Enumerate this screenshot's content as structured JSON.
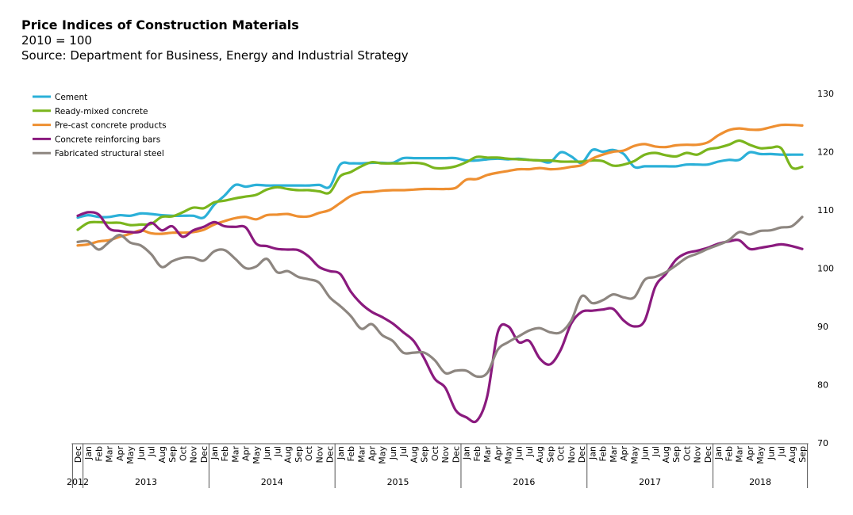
{
  "header": {
    "title": "Price Indices of Construction Materials",
    "subtitle": "2010 = 100",
    "source": "Source: Department for Business, Energy and Industrial Strategy"
  },
  "chart_data": {
    "type": "line",
    "title": "Price Indices of Construction Materials",
    "subtitle": "2010 = 100",
    "source": "Source: Department for Business, Energy and Industrial Strategy",
    "ylim": [
      70,
      130
    ],
    "y_ticks": [
      70,
      80,
      90,
      100,
      110,
      120,
      130
    ],
    "y_axis_side": "right",
    "grid": false,
    "legend_position": "top-left",
    "x": [
      "Dec 2012",
      "Jan 2013",
      "Feb 2013",
      "Mar 2013",
      "Apr 2013",
      "May 2013",
      "Jun 2013",
      "Jul 2013",
      "Aug 2013",
      "Sep 2013",
      "Oct 2013",
      "Nov 2013",
      "Dec 2013",
      "Jan 2014",
      "Feb 2014",
      "Mar 2014",
      "Apr 2014",
      "May 2014",
      "Jun 2014",
      "Jul 2014",
      "Aug 2014",
      "Sep 2014",
      "Oct 2014",
      "Nov 2014",
      "Dec 2014",
      "Jan 2015",
      "Feb 2015",
      "Mar 2015",
      "Apr 2015",
      "May 2015",
      "Jun 2015",
      "Jul 2015",
      "Aug 2015",
      "Sep 2015",
      "Oct 2015",
      "Nov 2015",
      "Dec 2015",
      "Jan 2016",
      "Feb 2016",
      "Mar 2016",
      "Apr 2016",
      "May 2016",
      "Jun 2016",
      "Jul 2016",
      "Aug 2016",
      "Sep 2016",
      "Oct 2016",
      "Nov 2016",
      "Dec 2016",
      "Jan 2017",
      "Feb 2017",
      "Mar 2017",
      "Apr 2017",
      "May 2017",
      "Jun 2017",
      "Jul 2017",
      "Aug 2017",
      "Sep 2017",
      "Oct 2017",
      "Nov 2017",
      "Dec 2017",
      "Jan 2018",
      "Feb 2018",
      "Mar 2018",
      "Apr 2018",
      "May 2018",
      "Jun 2018",
      "Jul 2018",
      "Aug 2018",
      "Sep 2018"
    ],
    "x_month_labels": [
      "Dec",
      "Jan",
      "Feb",
      "Mar",
      "Apr",
      "May",
      "Jun",
      "Jul",
      "Aug",
      "Sep",
      "Oct",
      "Nov",
      "Dec",
      "Jan",
      "Feb",
      "Mar",
      "Apr",
      "May",
      "Jun",
      "Jul",
      "Aug",
      "Sep",
      "Oct",
      "Nov",
      "Dec",
      "Jan",
      "Feb",
      "Mar",
      "Apr",
      "May",
      "Jun",
      "Jul",
      "Aug",
      "Sep",
      "Oct",
      "Nov",
      "Dec",
      "Jan",
      "Feb",
      "Mar",
      "Apr",
      "May",
      "Jun",
      "Jul",
      "Aug",
      "Sep",
      "Oct",
      "Nov",
      "Dec",
      "Jan",
      "Feb",
      "Mar",
      "Apr",
      "May",
      "Jun",
      "Jul",
      "Aug",
      "Sep",
      "Oct",
      "Nov",
      "Dec",
      "Jan",
      "Feb",
      "Mar",
      "Apr",
      "May",
      "Jun",
      "Jul",
      "Aug",
      "Sep"
    ],
    "x_year_groups": [
      {
        "label": "2012",
        "start": 0,
        "end": 0
      },
      {
        "label": "2013",
        "start": 1,
        "end": 12
      },
      {
        "label": "2014",
        "start": 13,
        "end": 24
      },
      {
        "label": "2015",
        "start": 25,
        "end": 36
      },
      {
        "label": "2016",
        "start": 37,
        "end": 48
      },
      {
        "label": "2017",
        "start": 49,
        "end": 60
      },
      {
        "label": "2018",
        "start": 61,
        "end": 69
      }
    ],
    "series": [
      {
        "name": "Cement",
        "color": "#2bb0d8",
        "values": [
          108.7,
          109.1,
          108.8,
          108.8,
          109.1,
          109.0,
          109.4,
          109.3,
          109.1,
          109.0,
          109.0,
          109.0,
          108.7,
          110.9,
          112.5,
          114.3,
          114.0,
          114.3,
          114.2,
          114.2,
          114.2,
          114.2,
          114.2,
          114.3,
          114.0,
          117.8,
          118.0,
          118.0,
          118.1,
          118.1,
          118.1,
          118.9,
          118.9,
          118.9,
          118.9,
          118.9,
          118.9,
          118.5,
          118.5,
          118.7,
          118.8,
          118.7,
          118.8,
          118.6,
          118.5,
          118.2,
          119.9,
          119.2,
          118.1,
          120.3,
          120.0,
          120.3,
          119.6,
          117.4,
          117.5,
          117.5,
          117.5,
          117.5,
          117.8,
          117.8,
          117.8,
          118.3,
          118.6,
          118.6,
          119.9,
          119.6,
          119.6,
          119.5,
          119.5,
          119.5
        ]
      },
      {
        "name": "Ready-mixed concrete",
        "color": "#7ab51d",
        "values": [
          106.6,
          107.8,
          107.9,
          107.8,
          107.8,
          107.4,
          107.5,
          107.6,
          108.8,
          108.9,
          109.6,
          110.4,
          110.3,
          111.3,
          111.6,
          112.0,
          112.3,
          112.6,
          113.5,
          113.9,
          113.6,
          113.4,
          113.4,
          113.2,
          113.0,
          115.8,
          116.5,
          117.5,
          118.2,
          118.0,
          118.0,
          118.0,
          118.1,
          117.9,
          117.2,
          117.2,
          117.5,
          118.2,
          119.1,
          119.0,
          119.0,
          118.8,
          118.7,
          118.6,
          118.5,
          118.5,
          118.3,
          118.3,
          118.3,
          118.5,
          118.4,
          117.6,
          117.8,
          118.4,
          119.5,
          119.8,
          119.4,
          119.2,
          119.8,
          119.5,
          120.4,
          120.7,
          121.2,
          121.9,
          121.2,
          120.6,
          120.7,
          120.6,
          117.3,
          117.4
        ]
      },
      {
        "name": "Pre-cast concrete products",
        "color": "#ee8f31",
        "values": [
          103.9,
          104.1,
          104.6,
          104.8,
          105.4,
          105.9,
          106.5,
          106.0,
          105.9,
          106.1,
          106.1,
          106.2,
          106.6,
          107.5,
          108.1,
          108.6,
          108.8,
          108.4,
          109.1,
          109.2,
          109.3,
          108.9,
          108.9,
          109.5,
          110.0,
          111.2,
          112.4,
          113.0,
          113.1,
          113.3,
          113.4,
          113.4,
          113.5,
          113.6,
          113.6,
          113.6,
          113.8,
          115.2,
          115.3,
          116.0,
          116.4,
          116.7,
          117.0,
          117.0,
          117.2,
          117.0,
          117.1,
          117.4,
          117.7,
          118.8,
          119.5,
          120.0,
          120.2,
          121.0,
          121.3,
          120.9,
          120.8,
          121.1,
          121.2,
          121.2,
          121.6,
          122.8,
          123.7,
          124.0,
          123.8,
          123.8,
          124.2,
          124.6,
          124.6,
          124.5
        ]
      },
      {
        "name": "Concrete reinforcing bars",
        "color": "#8a1a7e",
        "values": [
          109.0,
          109.6,
          109.2,
          106.8,
          106.4,
          106.2,
          106.3,
          107.8,
          106.5,
          107.2,
          105.4,
          106.5,
          107.1,
          107.9,
          107.2,
          107.1,
          107.0,
          104.2,
          103.8,
          103.3,
          103.2,
          103.1,
          102.0,
          100.2,
          99.5,
          99.0,
          96.0,
          93.9,
          92.5,
          91.6,
          90.5,
          89.0,
          87.5,
          84.5,
          81.0,
          79.5,
          75.6,
          74.4,
          73.8,
          78.0,
          89.0,
          90.0,
          87.3,
          87.5,
          84.5,
          83.5,
          86.0,
          90.5,
          92.5,
          92.7,
          92.9,
          93.0,
          91.0,
          90.0,
          91.0,
          96.8,
          99.0,
          101.5,
          102.6,
          103.0,
          103.5,
          104.2,
          104.6,
          104.8,
          103.3,
          103.5,
          103.8,
          104.1,
          103.8,
          103.3
        ]
      },
      {
        "name": "Fabricated structural steel",
        "color": "#8d8680",
        "values": [
          104.5,
          104.6,
          103.2,
          104.5,
          105.7,
          104.4,
          103.9,
          102.4,
          100.2,
          101.2,
          101.8,
          101.8,
          101.3,
          102.9,
          103.1,
          101.6,
          100.0,
          100.3,
          101.6,
          99.3,
          99.5,
          98.5,
          98.1,
          97.5,
          95.0,
          93.5,
          91.8,
          89.6,
          90.4,
          88.5,
          87.5,
          85.5,
          85.5,
          85.5,
          84.2,
          82.0,
          82.4,
          82.4,
          81.4,
          82.0,
          86.0,
          87.3,
          88.3,
          89.3,
          89.7,
          89.0,
          89.0,
          91.0,
          95.2,
          94.0,
          94.5,
          95.5,
          95.0,
          95.0,
          98.0,
          98.5,
          99.3,
          100.5,
          101.8,
          102.5,
          103.3,
          104.0,
          104.8,
          106.2,
          105.8,
          106.4,
          106.5,
          107.0,
          107.2,
          108.8
        ]
      }
    ]
  }
}
